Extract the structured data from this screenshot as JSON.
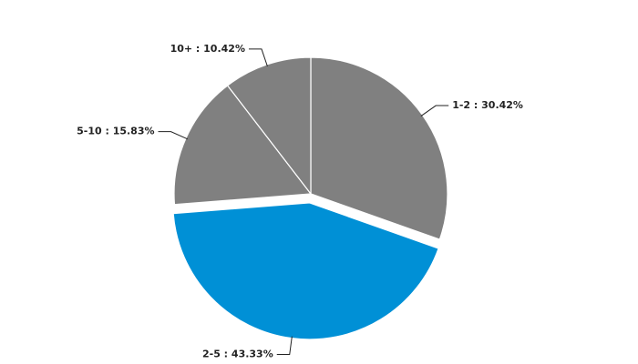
{
  "chart_data": {
    "type": "pie",
    "categories": [
      "1-2",
      "2-5",
      "5-10",
      "10+"
    ],
    "values": [
      30.42,
      43.33,
      15.83,
      10.42
    ],
    "value_labels": [
      "1-2 : 30.42%",
      "2-5 : 43.33%",
      "5-10 : 15.83%",
      "10+ : 10.42%"
    ],
    "colors": [
      "#808080",
      "#0090d6",
      "#808080",
      "#808080"
    ],
    "exploded": [
      false,
      true,
      false,
      false
    ]
  }
}
